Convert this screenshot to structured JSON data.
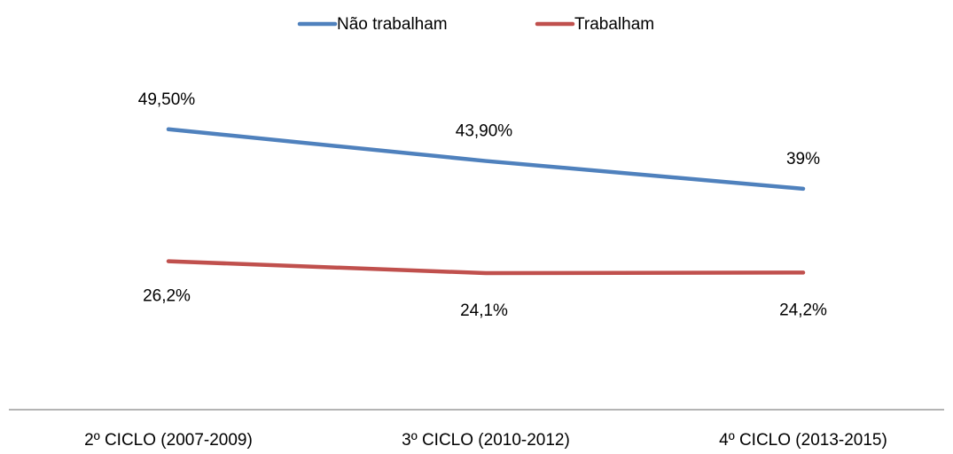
{
  "chart_data": {
    "type": "line",
    "categories": [
      "2º CICLO (2007-2009)",
      "3º CICLO (2010-2012)",
      "4º CICLO (2013-2015)"
    ],
    "series": [
      {
        "name": "Não trabalham",
        "color": "#4f81bd",
        "values": [
          49.5,
          43.9,
          39
        ],
        "value_labels": [
          "49,50%",
          "43,90%",
          "39%"
        ]
      },
      {
        "name": "Trabalham",
        "color": "#c0504d",
        "values": [
          26.2,
          24.1,
          24.2
        ],
        "value_labels": [
          "26,2%",
          "24,1%",
          "24,2%"
        ]
      }
    ],
    "ylim": [
      0,
      60
    ],
    "legend": "top"
  }
}
